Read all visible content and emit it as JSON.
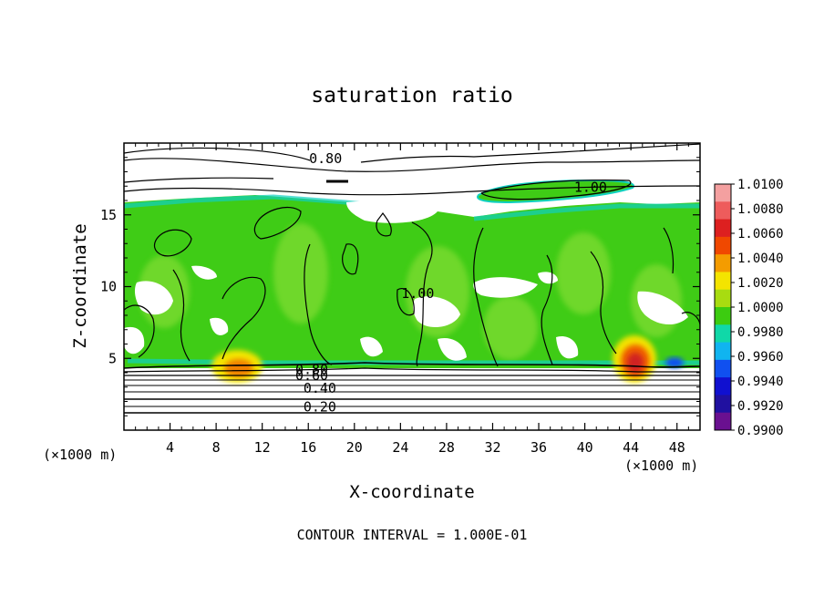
{
  "chart_data": {
    "type": "heatmap",
    "title": "saturation ratio",
    "xlabel": "X-coordinate",
    "ylabel": "Z-coordinate",
    "x_unit": "(×1000 m)",
    "y_unit": "(×1000 m)",
    "xlim": [
      0,
      50
    ],
    "ylim": [
      0,
      20
    ],
    "x_ticks": [
      "4",
      "8",
      "12",
      "16",
      "20",
      "24",
      "28",
      "32",
      "36",
      "40",
      "44",
      "48"
    ],
    "y_ticks": [
      "5",
      "10",
      "15"
    ],
    "footer": "CONTOUR INTERVAL = 1.000E-01",
    "colorbar": {
      "labels": [
        "1.0100",
        "1.0080",
        "1.0060",
        "1.0040",
        "1.0020",
        "1.0000",
        "0.9980",
        "0.9960",
        "0.9940",
        "0.9920",
        "0.9900"
      ],
      "colors": [
        "#f4a0a0",
        "#ee5c5c",
        "#dd2020",
        "#f04800",
        "#f49c00",
        "#f4e400",
        "#a8dc10",
        "#3ccc10",
        "#10d8a8",
        "#10b4f0",
        "#1050f0",
        "#1010d0",
        "#2010a0",
        "#6a1090"
      ]
    },
    "contour_labels": [
      {
        "text": "0.80",
        "x": 17.5,
        "y": 18.6
      },
      {
        "text": "1.00",
        "x": 40.5,
        "y": 16.6
      },
      {
        "text": "1.00",
        "x": 25.5,
        "y": 9.2
      },
      {
        "text": "0.80",
        "x": 16.3,
        "y": 3.9
      },
      {
        "text": "0.60",
        "x": 16.3,
        "y": 3.5
      },
      {
        "text": "0.40",
        "x": 17.0,
        "y": 2.6
      },
      {
        "text": "0.20",
        "x": 17.0,
        "y": 1.3
      }
    ],
    "contour_levels_below": [
      0.2,
      0.3,
      0.4,
      0.5,
      0.6,
      0.7,
      0.8,
      0.9
    ]
  }
}
